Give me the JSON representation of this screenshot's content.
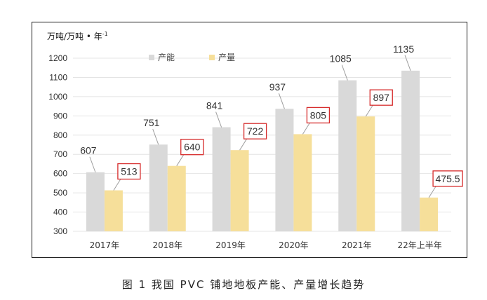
{
  "chart_data": {
    "type": "bar",
    "ylabel": "万吨/万吨 • 年",
    "ylabel_sup": "-1",
    "categories": [
      "2017年",
      "2018年",
      "2019年",
      "2020年",
      "2021年",
      "22年上半年"
    ],
    "series": [
      {
        "name": "产能",
        "values": [
          607,
          751,
          841,
          937,
          1085,
          1135
        ],
        "color": "#d9d9d9"
      },
      {
        "name": "产量",
        "values": [
          513,
          640,
          722,
          805,
          897,
          475.5
        ],
        "color": "#f6df9a"
      }
    ],
    "ylim": [
      300,
      1200
    ],
    "yticks": [
      300,
      400,
      500,
      600,
      700,
      800,
      900,
      1000,
      1100,
      1200
    ],
    "grid": true,
    "legend_position": "top-left",
    "highlight_color": "#d62a2a"
  },
  "caption": "图 1  我国 PVC 铺地地板产能、产量增长趋势"
}
